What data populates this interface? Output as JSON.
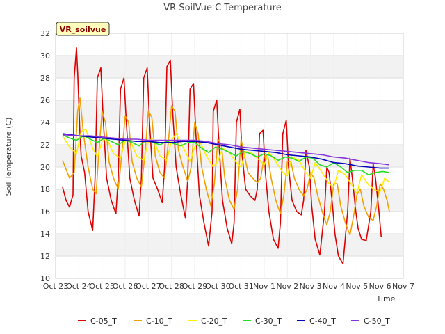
{
  "chart_data": {
    "type": "line",
    "title": "VR SoilVue C Temperature",
    "station_badge": "VR_soilvue",
    "xlabel": "Time",
    "ylabel": "Soil Temperature (C)",
    "ylim": [
      10,
      32
    ],
    "yticks": [
      10,
      12,
      14,
      16,
      18,
      20,
      22,
      24,
      26,
      28,
      30,
      32
    ],
    "xlim_days": [
      0,
      15
    ],
    "xtick_labels": [
      "Oct 23",
      "Oct 24",
      "Oct 25",
      "Oct 26",
      "Oct 27",
      "Oct 28",
      "Oct 29",
      "Oct 30",
      "Oct 31",
      "Nov 1",
      "Nov 2",
      "Nov 3",
      "Nov 4",
      "Nov 5",
      "Nov 6",
      "Nov 7"
    ],
    "grid": true,
    "legend_position": "bottom",
    "series": [
      {
        "name": "C-05_T",
        "color": "#dd0000",
        "x": [
          0.3,
          0.45,
          0.6,
          0.75,
          0.8,
          0.9,
          0.95,
          1.05,
          1.1,
          1.25,
          1.4,
          1.6,
          1.7,
          1.8,
          1.95,
          2.05,
          2.2,
          2.4,
          2.6,
          2.7,
          2.8,
          2.95,
          3.05,
          3.2,
          3.4,
          3.6,
          3.7,
          3.8,
          3.95,
          4.05,
          4.2,
          4.4,
          4.6,
          4.7,
          4.8,
          4.95,
          5.05,
          5.2,
          5.4,
          5.6,
          5.7,
          5.8,
          5.95,
          6.05,
          6.2,
          6.4,
          6.6,
          6.75,
          6.8,
          6.95,
          7.05,
          7.2,
          7.4,
          7.6,
          7.7,
          7.8,
          7.95,
          8.05,
          8.2,
          8.4,
          8.6,
          8.7,
          8.8,
          8.95,
          9.05,
          9.2,
          9.4,
          9.6,
          9.7,
          9.8,
          9.95,
          10.05,
          10.2,
          10.4,
          10.6,
          10.7,
          10.8,
          10.95,
          11.05,
          11.2,
          11.4,
          11.6,
          11.7,
          11.8,
          11.95,
          12.05,
          12.2,
          12.4,
          12.6,
          12.7,
          12.8,
          12.95,
          13.05,
          13.2,
          13.4,
          13.6,
          13.7,
          13.8,
          13.95,
          14.05
        ],
        "y": [
          18.2,
          17.0,
          16.4,
          17.5,
          28.0,
          30.7,
          28.5,
          23.0,
          21.0,
          19.5,
          16.0,
          14.3,
          19.0,
          28.0,
          28.9,
          24.5,
          19.0,
          17.0,
          15.8,
          19.0,
          27.0,
          28.0,
          24.0,
          19.0,
          17.0,
          15.6,
          19.0,
          28.0,
          28.9,
          24.0,
          19.0,
          18.0,
          16.8,
          20.0,
          29.0,
          29.6,
          25.0,
          20.0,
          17.5,
          15.4,
          19.0,
          27.0,
          27.5,
          23.0,
          17.5,
          15.0,
          12.9,
          16.0,
          25.0,
          26.0,
          22.0,
          17.0,
          14.5,
          13.1,
          15.0,
          24.0,
          25.2,
          21.0,
          18.0,
          17.4,
          17.0,
          18.0,
          23.0,
          23.3,
          19.5,
          16.0,
          13.5,
          12.7,
          15.0,
          23.0,
          24.2,
          20.0,
          17.0,
          16.0,
          15.7,
          17.0,
          21.5,
          20.0,
          16.5,
          13.5,
          12.1,
          16.0,
          20.0,
          19.5,
          16.5,
          14.0,
          12.0,
          11.3,
          16.0,
          20.8,
          19.0,
          16.0,
          14.5,
          13.5,
          13.4,
          16.0,
          20.3,
          19.0,
          16.0,
          13.7
        ]
      },
      {
        "name": "C-10_T",
        "color": "#f0a000",
        "x": [
          0.3,
          0.6,
          0.8,
          0.95,
          1.05,
          1.2,
          1.4,
          1.6,
          1.75,
          1.85,
          2.0,
          2.15,
          2.3,
          2.5,
          2.7,
          2.85,
          3.0,
          3.15,
          3.3,
          3.5,
          3.7,
          3.85,
          4.0,
          4.15,
          4.3,
          4.5,
          4.7,
          4.85,
          5.0,
          5.15,
          5.3,
          5.5,
          5.7,
          5.85,
          6.0,
          6.15,
          6.3,
          6.5,
          6.7,
          6.85,
          7.0,
          7.15,
          7.3,
          7.5,
          7.7,
          7.85,
          8.0,
          8.15,
          8.3,
          8.5,
          8.7,
          8.85,
          9.0,
          9.15,
          9.3,
          9.5,
          9.7,
          9.85,
          10.0,
          10.15,
          10.3,
          10.5,
          10.7,
          10.85,
          11.0,
          11.15,
          11.3,
          11.5,
          11.7,
          11.85,
          12.0,
          12.15,
          12.3,
          12.5,
          12.7,
          12.85,
          13.0,
          13.15,
          13.3,
          13.5,
          13.7,
          13.85,
          14.0,
          14.15,
          14.3,
          14.4
        ],
        "y": [
          20.6,
          19.0,
          19.5,
          25.0,
          26.2,
          23.0,
          20.0,
          18.0,
          17.6,
          21.0,
          25.0,
          24.0,
          20.5,
          19.0,
          18.0,
          21.0,
          24.6,
          24.0,
          20.5,
          19.0,
          18.2,
          21.0,
          25.0,
          24.5,
          21.0,
          19.5,
          19.0,
          22.0,
          25.5,
          25.0,
          21.5,
          20.0,
          18.7,
          20.0,
          24.0,
          23.0,
          20.0,
          18.0,
          16.5,
          18.5,
          22.5,
          22.0,
          19.0,
          17.0,
          16.2,
          18.0,
          22.5,
          21.0,
          19.5,
          19.0,
          18.6,
          19.0,
          21.0,
          21.0,
          19.0,
          17.0,
          15.8,
          17.5,
          20.5,
          20.5,
          19.0,
          18.0,
          17.4,
          18.0,
          19.5,
          19.0,
          17.5,
          16.0,
          14.8,
          16.0,
          18.5,
          18.5,
          16.5,
          15.0,
          13.9,
          15.5,
          17.5,
          18.0,
          16.5,
          15.5,
          15.2,
          16.5,
          18.5,
          18.0,
          17.0,
          16.0
        ]
      },
      {
        "name": "C-20_T",
        "color": "#ffee00",
        "x": [
          0.3,
          0.6,
          0.9,
          1.1,
          1.3,
          1.6,
          1.8,
          2.0,
          2.2,
          2.5,
          2.8,
          3.0,
          3.2,
          3.5,
          3.8,
          4.0,
          4.2,
          4.5,
          4.8,
          5.0,
          5.2,
          5.5,
          5.8,
          6.0,
          6.2,
          6.5,
          6.8,
          7.0,
          7.2,
          7.5,
          7.8,
          8.0,
          8.2,
          8.5,
          8.8,
          9.0,
          9.2,
          9.5,
          9.8,
          10.0,
          10.2,
          10.5,
          10.8,
          11.0,
          11.2,
          11.5,
          11.8,
          12.0,
          12.2,
          12.5,
          12.8,
          13.0,
          13.2,
          13.5,
          13.8,
          14.0,
          14.2,
          14.4
        ],
        "y": [
          22.8,
          21.8,
          21.2,
          23.2,
          23.4,
          21.7,
          20.9,
          22.3,
          22.6,
          21.2,
          20.8,
          22.3,
          22.5,
          21.0,
          20.6,
          22.3,
          22.6,
          21.0,
          20.6,
          22.4,
          23.0,
          21.8,
          20.5,
          21.8,
          22.4,
          21.0,
          20.0,
          20.5,
          21.7,
          21.3,
          20.4,
          20.0,
          21.4,
          21.2,
          20.6,
          20.2,
          21.3,
          20.5,
          19.5,
          19.2,
          20.9,
          20.6,
          19.5,
          19.0,
          20.4,
          19.5,
          18.5,
          18.2,
          19.7,
          19.3,
          18.3,
          17.6,
          19.3,
          18.4,
          17.9,
          17.8,
          19.0,
          18.6
        ]
      },
      {
        "name": "C-30_T",
        "color": "#22dd22",
        "x": [
          0.3,
          0.6,
          0.9,
          1.2,
          1.5,
          1.8,
          2.1,
          2.4,
          2.7,
          3.0,
          3.3,
          3.6,
          3.9,
          4.2,
          4.5,
          4.8,
          5.1,
          5.4,
          5.7,
          6.0,
          6.3,
          6.6,
          6.9,
          7.2,
          7.5,
          7.8,
          8.1,
          8.4,
          8.7,
          9.0,
          9.3,
          9.6,
          9.9,
          10.2,
          10.5,
          10.8,
          11.1,
          11.4,
          11.7,
          12.0,
          12.3,
          12.6,
          12.9,
          13.2,
          13.5,
          13.8,
          14.1,
          14.4
        ],
        "y": [
          22.9,
          22.6,
          22.4,
          22.8,
          22.5,
          22.2,
          22.6,
          22.3,
          22.0,
          22.4,
          22.2,
          21.9,
          22.4,
          22.2,
          22.0,
          22.3,
          22.1,
          21.9,
          22.2,
          22.2,
          21.7,
          21.3,
          21.8,
          21.6,
          21.3,
          21.0,
          21.4,
          21.2,
          20.9,
          21.2,
          21.0,
          20.6,
          20.9,
          20.8,
          20.5,
          20.9,
          20.8,
          20.2,
          20.0,
          20.4,
          20.0,
          19.5,
          19.7,
          19.7,
          19.3,
          19.5,
          19.6,
          19.5
        ]
      },
      {
        "name": "C-40_T",
        "color": "#0000bb",
        "x": [
          0.3,
          1.0,
          1.5,
          2.0,
          2.5,
          3.0,
          3.5,
          4.0,
          4.5,
          5.0,
          5.5,
          6.0,
          6.5,
          7.0,
          7.5,
          8.0,
          8.5,
          9.0,
          9.5,
          10.0,
          10.5,
          11.0,
          11.5,
          12.0,
          12.5,
          13.0,
          13.5,
          14.0,
          14.4
        ],
        "y": [
          23.0,
          22.8,
          22.7,
          22.6,
          22.5,
          22.4,
          22.3,
          22.3,
          22.2,
          22.2,
          22.3,
          22.3,
          22.2,
          22.0,
          21.8,
          21.6,
          21.5,
          21.4,
          21.3,
          21.1,
          21.0,
          20.9,
          20.7,
          20.4,
          20.3,
          20.1,
          20.0,
          19.9,
          19.9
        ]
      },
      {
        "name": "C-50_T",
        "color": "#8833dd",
        "x": [
          0.3,
          1.0,
          1.5,
          2.0,
          2.5,
          3.0,
          3.5,
          4.0,
          4.5,
          5.0,
          5.5,
          6.0,
          6.5,
          7.0,
          7.5,
          8.0,
          8.5,
          9.0,
          9.5,
          10.0,
          10.5,
          11.0,
          11.5,
          12.0,
          12.5,
          13.0,
          13.5,
          14.0,
          14.4
        ],
        "y": [
          22.9,
          22.8,
          22.8,
          22.7,
          22.6,
          22.5,
          22.5,
          22.4,
          22.4,
          22.4,
          22.4,
          22.4,
          22.3,
          22.1,
          22.0,
          21.8,
          21.7,
          21.6,
          21.5,
          21.4,
          21.3,
          21.2,
          21.1,
          20.9,
          20.8,
          20.6,
          20.4,
          20.3,
          20.2
        ]
      }
    ]
  }
}
